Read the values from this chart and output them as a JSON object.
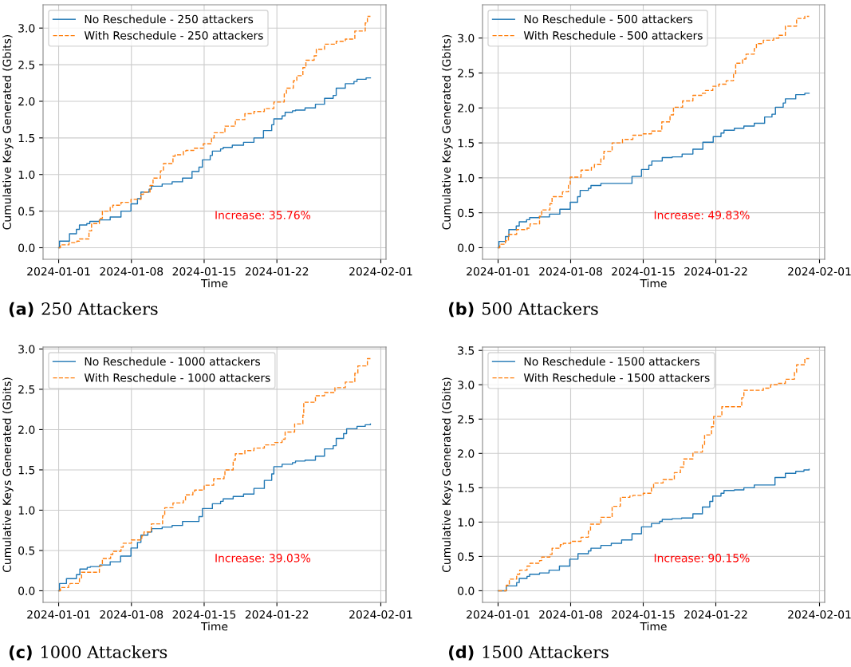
{
  "chart_data": [
    {
      "type": "step",
      "title": "(a) 250 Attackers",
      "xlabel": "Time",
      "ylabel": "Cumulative Keys Generated (Gbits)",
      "annotations": [
        "Increase: 35.76%"
      ],
      "grid": true,
      "legend": "top left",
      "xlim": [
        "2023-12-30T12:00",
        "2024-02-01T12:00"
      ],
      "xticks": [
        "2024-01-01",
        "2024-01-08",
        "2024-01-15",
        "2024-01-22",
        "2024-02-01"
      ],
      "ylim": [
        -0.158,
        3.318
      ],
      "yticks": [
        {
          "value": 0,
          "label": "0.0"
        },
        0.5,
        {
          "value": 1,
          "label": "1.0"
        },
        1.5,
        {
          "value": 2,
          "label": "2.0"
        },
        2.5,
        {
          "value": 3,
          "label": "3.0"
        }
      ],
      "series": [
        {
          "name": "No Reschedule - 250 attackers",
          "color": "#1f77b4",
          "line_style": "solid",
          "x": [
            "2024-01-01T00:00",
            "2024-01-01T02:00",
            "2024-01-02T01:00",
            "2024-01-02T17:00",
            "2024-01-03T00:00",
            "2024-01-03T17:00",
            "2024-01-04T00:00",
            "2024-01-04T22:00",
            "2024-01-05T23:00",
            "2024-01-07T00:00",
            "2024-01-07T23:00",
            "2024-01-08T14:00",
            "2024-01-08T22:00",
            "2024-01-09T17:00",
            "2024-01-09T22:00",
            "2024-01-10T23:00",
            "2024-01-11T22:00",
            "2024-01-12T22:00",
            "2024-01-13T20:00",
            "2024-01-14T12:00",
            "2024-01-14T20:00",
            "2024-01-15T14:00",
            "2024-01-15T19:00",
            "2024-01-16T14:00",
            "2024-01-16T20:00",
            "2024-01-17T17:00",
            "2024-01-18T19:00",
            "2024-01-19T19:00",
            "2024-01-20T17:00",
            "2024-01-21T12:00",
            "2024-01-21T17:00",
            "2024-01-22T12:00",
            "2024-01-22T19:00",
            "2024-01-23T12:00",
            "2024-01-23T19:00",
            "2024-01-24T17:00",
            "2024-01-25T17:00",
            "2024-01-26T14:00",
            "2024-01-27T10:00",
            "2024-01-27T17:00",
            "2024-01-28T14:00",
            "2024-01-29T10:00",
            "2024-01-29T17:00",
            "2024-01-30T14:00",
            "2024-01-31T00:00"
          ],
          "values": [
            0,
            0.09,
            0.19,
            0.25,
            0.31,
            0.33,
            0.36,
            0.38,
            0.42,
            0.5,
            0.6,
            0.67,
            0.76,
            0.8,
            0.84,
            0.87,
            0.9,
            0.95,
            1.04,
            1.1,
            1.2,
            1.26,
            1.32,
            1.35,
            1.37,
            1.4,
            1.44,
            1.5,
            1.6,
            1.68,
            1.76,
            1.8,
            1.85,
            1.87,
            1.88,
            1.91,
            1.96,
            2.04,
            2.08,
            2.18,
            2.24,
            2.27,
            2.3,
            2.32,
            2.32
          ]
        },
        {
          "name": "With Reschedule - 250 attackers",
          "color": "#ff7f0e",
          "line_style": "dashed",
          "x": [
            "2024-01-01T00:00",
            "2024-01-01T04:00",
            "2024-01-02T00:00",
            "2024-01-02T18:00",
            "2024-01-03T00:00",
            "2024-01-03T22:00",
            "2024-01-04T04:00",
            "2024-01-04T22:00",
            "2024-01-05T05:00",
            "2024-01-05T23:00",
            "2024-01-06T05:00",
            "2024-01-07T00:00",
            "2024-01-07T23:00",
            "2024-01-08T22:00",
            "2024-01-09T04:00",
            "2024-01-09T19:00",
            "2024-01-10T02:00",
            "2024-01-10T19:00",
            "2024-01-11T02:00",
            "2024-01-12T00:00",
            "2024-01-12T05:00",
            "2024-01-13T00:00",
            "2024-01-13T06:00",
            "2024-01-14T00:00",
            "2024-01-14T22:00",
            "2024-01-15T17:00",
            "2024-01-15T23:00",
            "2024-01-17T00:00",
            "2024-01-18T00:00",
            "2024-01-18T22:00",
            "2024-01-19T19:00",
            "2024-01-20T19:00",
            "2024-01-21T17:00",
            "2024-01-22T17:00",
            "2024-01-22T22:00",
            "2024-01-23T14:00",
            "2024-01-23T22:00",
            "2024-01-24T12:00",
            "2024-01-24T19:00",
            "2024-01-25T14:00",
            "2024-01-25T19:00",
            "2024-01-26T14:00",
            "2024-01-27T17:00",
            "2024-01-28T14:00",
            "2024-01-29T12:00",
            "2024-01-30T12:00",
            "2024-01-30T17:00",
            "2024-01-31T00:00"
          ],
          "values": [
            0,
            0.04,
            0.07,
            0.09,
            0.12,
            0.23,
            0.33,
            0.4,
            0.5,
            0.55,
            0.58,
            0.62,
            0.66,
            0.73,
            0.76,
            0.85,
            0.95,
            1.05,
            1.15,
            1.25,
            1.27,
            1.32,
            1.33,
            1.36,
            1.42,
            1.5,
            1.57,
            1.66,
            1.75,
            1.83,
            1.86,
            1.9,
            1.99,
            2.1,
            2.18,
            2.28,
            2.35,
            2.46,
            2.56,
            2.62,
            2.71,
            2.78,
            2.82,
            2.85,
            2.96,
            3.07,
            3.16,
            3.16
          ]
        }
      ]
    },
    {
      "type": "step",
      "title": "(b) 500 Attackers",
      "xlabel": "Time",
      "ylabel": "Cumulative Keys Generated (Gbits)",
      "annotations": [
        "Increase: 49.83%"
      ],
      "grid": true,
      "legend": "top left",
      "xlim": [
        "2023-12-30T12:00",
        "2024-02-01T12:00"
      ],
      "xticks": [
        "2024-01-01",
        "2024-01-08",
        "2024-01-15",
        "2024-01-22",
        "2024-02-01"
      ],
      "ylim": [
        -0.166,
        3.476
      ],
      "yticks": [
        {
          "value": 0,
          "label": "0.0"
        },
        0.5,
        {
          "value": 1,
          "label": "1.0"
        },
        1.5,
        {
          "value": 2,
          "label": "2.0"
        },
        2.5,
        {
          "value": 3,
          "label": "3.0"
        }
      ],
      "series": [
        {
          "name": "No Reschedule - 500 attackers",
          "color": "#1f77b4",
          "line_style": "solid",
          "x": [
            "2024-01-01T00:00",
            "2024-01-01T02:00",
            "2024-01-01T17:00",
            "2024-01-02T01:00",
            "2024-01-02T18:00",
            "2024-01-03T01:00",
            "2024-01-03T18:00",
            "2024-01-04T01:00",
            "2024-01-04T23:00",
            "2024-01-05T23:00",
            "2024-01-06T23:00",
            "2024-01-07T23:00",
            "2024-01-08T16:00",
            "2024-01-08T22:00",
            "2024-01-09T17:00",
            "2024-01-09T23:00",
            "2024-01-10T22:00",
            "2024-01-13T22:00",
            "2024-01-14T20:00",
            "2024-01-15T13:00",
            "2024-01-15T20:00",
            "2024-01-16T20:00",
            "2024-01-17T19:00",
            "2024-01-18T18:00",
            "2024-01-19T19:00",
            "2024-01-20T18:00",
            "2024-01-21T18:00",
            "2024-01-22T12:00",
            "2024-01-22T19:00",
            "2024-01-23T19:00",
            "2024-01-24T17:00",
            "2024-01-25T17:00",
            "2024-01-26T17:00",
            "2024-01-27T10:00",
            "2024-01-27T18:00",
            "2024-01-28T12:00",
            "2024-01-28T17:00",
            "2024-01-29T17:00",
            "2024-01-30T14:00",
            "2024-01-31T00:00"
          ],
          "values": [
            0,
            0.09,
            0.16,
            0.26,
            0.31,
            0.37,
            0.4,
            0.43,
            0.44,
            0.48,
            0.55,
            0.65,
            0.73,
            0.82,
            0.85,
            0.89,
            0.92,
            1.02,
            1.12,
            1.18,
            1.24,
            1.29,
            1.3,
            1.34,
            1.41,
            1.51,
            1.59,
            1.64,
            1.68,
            1.71,
            1.74,
            1.78,
            1.87,
            1.91,
            2.01,
            2.07,
            2.13,
            2.19,
            2.21,
            2.21
          ]
        },
        {
          "name": "With Reschedule - 500 attackers",
          "color": "#ff7f0e",
          "line_style": "dashed",
          "x": [
            "2024-01-01T00:00",
            "2024-01-01T04:00",
            "2024-01-01T17:00",
            "2024-01-02T00:00",
            "2024-01-02T19:00",
            "2024-01-03T19:00",
            "2024-01-04T02:00",
            "2024-01-05T00:00",
            "2024-01-05T05:00",
            "2024-01-06T00:00",
            "2024-01-06T05:00",
            "2024-01-07T05:00",
            "2024-01-07T19:00",
            "2024-01-07T23:00",
            "2024-01-09T00:00",
            "2024-01-10T00:00",
            "2024-01-10T07:00",
            "2024-01-10T22:00",
            "2024-01-11T05:00",
            "2024-01-12T00:00",
            "2024-01-13T00:00",
            "2024-01-14T00:00",
            "2024-01-15T00:00",
            "2024-01-15T19:00",
            "2024-01-16T19:00",
            "2024-01-17T14:00",
            "2024-01-17T22:00",
            "2024-01-18T19:00",
            "2024-01-19T19:00",
            "2024-01-20T17:00",
            "2024-01-21T00:00",
            "2024-01-21T17:00",
            "2024-01-22T07:00",
            "2024-01-23T00:00",
            "2024-01-23T17:00",
            "2024-01-23T22:00",
            "2024-01-24T14:00",
            "2024-01-24T22:00",
            "2024-01-25T17:00",
            "2024-01-25T22:00",
            "2024-01-26T14:00",
            "2024-01-27T14:00",
            "2024-01-28T02:00",
            "2024-01-28T17:00",
            "2024-01-29T19:00",
            "2024-01-30T14:00",
            "2024-01-31T00:00"
          ],
          "values": [
            0,
            0.05,
            0.1,
            0.19,
            0.26,
            0.28,
            0.34,
            0.45,
            0.54,
            0.63,
            0.73,
            0.8,
            0.9,
            1.01,
            1.11,
            1.15,
            1.19,
            1.27,
            1.38,
            1.5,
            1.55,
            1.61,
            1.63,
            1.67,
            1.8,
            1.9,
            2.01,
            2.1,
            2.18,
            2.21,
            2.25,
            2.31,
            2.34,
            2.39,
            2.48,
            2.64,
            2.7,
            2.77,
            2.85,
            2.92,
            2.97,
            3.0,
            3.04,
            3.17,
            3.28,
            3.31,
            3.31
          ]
        }
      ]
    },
    {
      "type": "step",
      "title": "(c) 1000 Attackers",
      "xlabel": "Time",
      "ylabel": "Cumulative Keys Generated (Gbits)",
      "annotations": [
        "Increase: 39.03%"
      ],
      "grid": true,
      "legend": "top left",
      "xlim": [
        "2023-12-30T12:00",
        "2024-02-01T12:00"
      ],
      "xticks": [
        "2024-01-01",
        "2024-01-08",
        "2024-01-15",
        "2024-01-22",
        "2024-02-01"
      ],
      "ylim": [
        -0.144,
        3.024
      ],
      "yticks": [
        {
          "value": 0,
          "label": "0.0"
        },
        0.5,
        {
          "value": 1,
          "label": "1.0"
        },
        1.5,
        {
          "value": 2,
          "label": "2.0"
        },
        2.5,
        {
          "value": 3,
          "label": "3.0"
        }
      ],
      "series": [
        {
          "name": "No Reschedule - 1000 attackers",
          "color": "#1f77b4",
          "line_style": "solid",
          "x": [
            "2024-01-01T00:00",
            "2024-01-01T02:00",
            "2024-01-01T18:00",
            "2024-01-02T17:00",
            "2024-01-03T01:00",
            "2024-01-03T18:00",
            "2024-01-04T01:00",
            "2024-01-04T23:00",
            "2024-01-05T23:00",
            "2024-01-06T23:00",
            "2024-01-07T23:00",
            "2024-01-08T14:00",
            "2024-01-08T22:00",
            "2024-01-09T14:00",
            "2024-01-09T23:00",
            "2024-01-10T23:00",
            "2024-01-11T22:00",
            "2024-01-12T22:00",
            "2024-01-14T12:00",
            "2024-01-14T20:00",
            "2024-01-15T19:00",
            "2024-01-16T14:00",
            "2024-01-16T20:00",
            "2024-01-17T19:00",
            "2024-01-18T19:00",
            "2024-01-19T19:00",
            "2024-01-20T19:00",
            "2024-01-21T12:00",
            "2024-01-21T17:00",
            "2024-01-22T12:00",
            "2024-01-23T12:00",
            "2024-01-23T19:00",
            "2024-01-24T17:00",
            "2024-01-25T17:00",
            "2024-01-26T14:00",
            "2024-01-27T10:00",
            "2024-01-27T17:00",
            "2024-01-28T10:00",
            "2024-01-28T17:00",
            "2024-01-29T17:00",
            "2024-01-30T12:00",
            "2024-01-31T00:00"
          ],
          "values": [
            0,
            0.09,
            0.15,
            0.2,
            0.27,
            0.29,
            0.3,
            0.32,
            0.36,
            0.43,
            0.53,
            0.6,
            0.69,
            0.73,
            0.77,
            0.79,
            0.81,
            0.86,
            0.92,
            1.02,
            1.08,
            1.11,
            1.14,
            1.17,
            1.2,
            1.27,
            1.37,
            1.45,
            1.54,
            1.57,
            1.59,
            1.61,
            1.62,
            1.67,
            1.76,
            1.8,
            1.89,
            1.95,
            2.01,
            2.04,
            2.06,
            2.07
          ]
        },
        {
          "name": "With Reschedule - 1000 attackers",
          "color": "#ff7f0e",
          "line_style": "dashed",
          "x": [
            "2024-01-01T00:00",
            "2024-01-01T04:00",
            "2024-01-01T23:00",
            "2024-01-02T02:00",
            "2024-01-03T00:00",
            "2024-01-03T05:00",
            "2024-01-04T22:00",
            "2024-01-05T05:00",
            "2024-01-06T00:00",
            "2024-01-06T05:00",
            "2024-01-07T00:00",
            "2024-01-07T05:00",
            "2024-01-08T00:00",
            "2024-01-09T00:00",
            "2024-01-09T05:00",
            "2024-01-09T22:00",
            "2024-01-11T00:00",
            "2024-01-11T05:00",
            "2024-01-12T00:00",
            "2024-01-13T00:00",
            "2024-01-13T05:00",
            "2024-01-13T22:00",
            "2024-01-14T02:00",
            "2024-01-15T00:00",
            "2024-01-15T22:00",
            "2024-01-16T22:00",
            "2024-01-17T00:00",
            "2024-01-17T19:00",
            "2024-01-18T00:00",
            "2024-01-18T22:00",
            "2024-01-19T19:00",
            "2024-01-20T19:00",
            "2024-01-21T19:00",
            "2024-01-22T12:00",
            "2024-01-22T19:00",
            "2024-01-23T17:00",
            "2024-01-24T12:00",
            "2024-01-24T14:00",
            "2024-01-25T17:00",
            "2024-01-26T14:00",
            "2024-01-27T14:00",
            "2024-01-28T14:00",
            "2024-01-29T12:00",
            "2024-01-29T19:00",
            "2024-01-30T17:00",
            "2024-01-31T00:00"
          ],
          "values": [
            0,
            0.04,
            0.07,
            0.09,
            0.15,
            0.23,
            0.31,
            0.4,
            0.45,
            0.49,
            0.54,
            0.59,
            0.63,
            0.68,
            0.73,
            0.83,
            0.93,
            1.03,
            1.09,
            1.12,
            1.19,
            1.23,
            1.25,
            1.31,
            1.39,
            1.44,
            1.5,
            1.62,
            1.7,
            1.74,
            1.77,
            1.81,
            1.84,
            1.88,
            1.97,
            2.07,
            2.18,
            2.34,
            2.42,
            2.46,
            2.52,
            2.59,
            2.7,
            2.79,
            2.88,
            2.88
          ]
        }
      ]
    },
    {
      "type": "step",
      "title": "(d) 1500 Attackers",
      "xlabel": "Time",
      "ylabel": "Cumulative Keys Generated (Gbits)",
      "annotations": [
        "Increase: 90.15%"
      ],
      "grid": true,
      "legend": "top left",
      "xlim": [
        "2023-12-30T12:00",
        "2024-02-01T12:00"
      ],
      "xticks": [
        "2024-01-01",
        "2024-01-08",
        "2024-01-15",
        "2024-01-22",
        "2024-02-01"
      ],
      "ylim": [
        -0.169,
        3.549
      ],
      "yticks": [
        {
          "value": 0,
          "label": "0.0"
        },
        0.5,
        {
          "value": 1,
          "label": "1.0"
        },
        1.5,
        {
          "value": 2,
          "label": "2.0"
        },
        2.5,
        {
          "value": 3,
          "label": "3.0"
        },
        3.5
      ],
      "series": [
        {
          "name": "No Reschedule - 1500 attackers",
          "color": "#1f77b4",
          "line_style": "solid",
          "x": [
            "2024-01-01T00:00",
            "2024-01-01T19:00",
            "2024-01-02T19:00",
            "2024-01-03T01:00",
            "2024-01-03T19:00",
            "2024-01-04T01:00",
            "2024-01-05T00:00",
            "2024-01-05T22:00",
            "2024-01-06T22:00",
            "2024-01-07T22:00",
            "2024-01-08T17:00",
            "2024-01-09T17:00",
            "2024-01-09T23:00",
            "2024-01-10T22:00",
            "2024-01-11T22:00",
            "2024-01-12T22:00",
            "2024-01-13T22:00",
            "2024-01-14T20:00",
            "2024-01-15T19:00",
            "2024-01-16T14:00",
            "2024-01-16T20:00",
            "2024-01-17T19:00",
            "2024-01-18T17:00",
            "2024-01-19T19:00",
            "2024-01-20T17:00",
            "2024-01-21T10:00",
            "2024-01-21T17:00",
            "2024-01-22T12:00",
            "2024-01-22T19:00",
            "2024-01-23T19:00",
            "2024-01-24T17:00",
            "2024-01-25T17:00",
            "2024-01-27T17:00",
            "2024-01-28T17:00",
            "2024-01-29T17:00",
            "2024-01-30T12:00",
            "2024-01-31T00:00"
          ],
          "values": [
            0,
            0.07,
            0.12,
            0.18,
            0.21,
            0.24,
            0.26,
            0.3,
            0.36,
            0.46,
            0.54,
            0.58,
            0.62,
            0.66,
            0.69,
            0.74,
            0.83,
            0.93,
            0.98,
            1.01,
            1.04,
            1.05,
            1.06,
            1.12,
            1.22,
            1.3,
            1.38,
            1.42,
            1.46,
            1.47,
            1.5,
            1.54,
            1.65,
            1.71,
            1.74,
            1.76,
            1.77
          ]
        },
        {
          "name": "With Reschedule - 1500 attackers",
          "color": "#ff7f0e",
          "line_style": "dashed",
          "x": [
            "2024-01-01T00:00",
            "2024-01-01T19:00",
            "2024-01-02T02:00",
            "2024-01-02T19:00",
            "2024-01-03T02:00",
            "2024-01-03T19:00",
            "2024-01-04T02:00",
            "2024-01-05T00:00",
            "2024-01-05T05:00",
            "2024-01-06T00:00",
            "2024-01-06T05:00",
            "2024-01-07T00:00",
            "2024-01-07T07:00",
            "2024-01-08T00:00",
            "2024-01-09T00:00",
            "2024-01-09T17:00",
            "2024-01-09T22:00",
            "2024-01-10T22:00",
            "2024-01-12T00:00",
            "2024-01-12T19:00",
            "2024-01-13T17:00",
            "2024-01-14T00:00",
            "2024-01-15T00:00",
            "2024-01-15T19:00",
            "2024-01-16T00:00",
            "2024-01-16T22:00",
            "2024-01-18T00:00",
            "2024-01-18T14:00",
            "2024-01-18T22:00",
            "2024-01-19T19:00",
            "2024-01-20T17:00",
            "2024-01-20T22:00",
            "2024-01-21T14:00",
            "2024-01-21T19:00",
            "2024-01-22T14:00",
            "2024-01-24T12:00",
            "2024-01-24T17:00",
            "2024-01-26T14:00",
            "2024-01-27T07:00",
            "2024-01-27T22:00",
            "2024-01-28T17:00",
            "2024-01-29T14:00",
            "2024-01-29T19:00",
            "2024-01-30T14:00",
            "2024-01-31T00:00"
          ],
          "values": [
            0,
            0.08,
            0.17,
            0.24,
            0.3,
            0.36,
            0.4,
            0.44,
            0.49,
            0.53,
            0.62,
            0.67,
            0.69,
            0.72,
            0.78,
            0.87,
            0.97,
            1.07,
            1.23,
            1.36,
            1.38,
            1.39,
            1.42,
            1.5,
            1.57,
            1.62,
            1.72,
            1.8,
            1.92,
            2.02,
            2.13,
            2.27,
            2.39,
            2.54,
            2.68,
            2.81,
            2.92,
            2.95,
            3.0,
            3.02,
            3.08,
            3.18,
            3.29,
            3.38,
            3.38
          ]
        }
      ]
    }
  ]
}
